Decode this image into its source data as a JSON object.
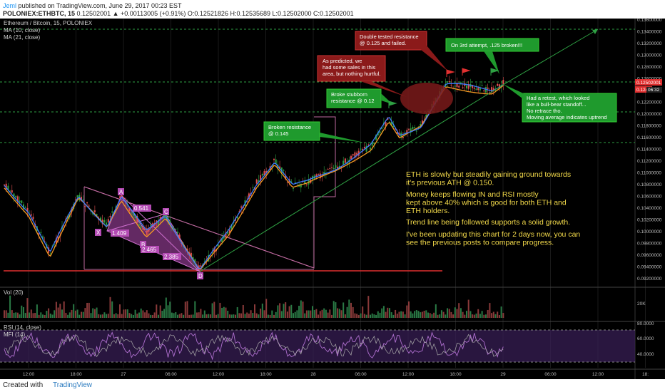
{
  "header": {
    "author": "Jeml",
    "published": "published on TradingView.com, June 29, 2017 00:23 EST",
    "symbol_line": "POLONIEX:ETHBTC, 15",
    "price_line": "0.12502001 ▲ +0.00113005 (+0.91%) O:0.12521826 H:0.12535689 L:0.12502000 C:0.12502001"
  },
  "legend": {
    "title": "Ethereum / Bitcoin, 15, POLONIEX",
    "ma10": "MA (10, close)",
    "ma21": "MA (21, close)",
    "vol": "Vol (20)",
    "rsi": "RSI (14, close)",
    "mfi": "MFI (14)"
  },
  "annotations": {
    "double_tested": "Double tested resistance\n@ 0.125 and failed.",
    "predicted": "As predicted, we\nhad some sales in this\narea, but nothing hurtful.",
    "third_attempt": "On 3rd attempt, .125 broken!!!",
    "broke_stubborn": "Broke stubborn\nresistance @ 0.12",
    "broken_145": "Broken resistance\n@ 0.145",
    "retest": "Had a retest, which looked\nlike a bull-bear standoff...\nNo retrace tho.\nMoving average indicates uptrend"
  },
  "notes": {
    "p1": "ETH is slowly but steadily gaining ground towards\nit's previous ATH @ 0.150.",
    "p2": "Money keeps flowing IN and RSI mostly\nkept above 40% which is good for both ETH and\nETH holders.",
    "p3": "Trend line being followed supports a solid growth.",
    "p4": "I've been updating this chart for 2 days now, you can\nsee the previous posts to compare progress."
  },
  "pattern": {
    "points": [
      "X",
      "A",
      "B",
      "C",
      "D"
    ],
    "ratios": [
      "0.541",
      "1.409",
      "2.465",
      "2.385"
    ]
  },
  "price_axis": {
    "labels": [
      "0.13600000",
      "0.13400000",
      "0.13200000",
      "0.13000000",
      "0.12800000",
      "0.12600000",
      "0.12400000",
      "0.12200000",
      "0.12000000",
      "0.11800000",
      "0.11600000",
      "0.11400000",
      "0.11200000",
      "0.11000000",
      "0.10800000",
      "0.10600000",
      "0.10400000",
      "0.10200000",
      "0.10000000",
      "0.09800000",
      "0.09600000",
      "0.09400000",
      "0.09200000"
    ],
    "current_price": "0.12502001",
    "countdown": "06:32",
    "partial": "0.124"
  },
  "vol_axis": {
    "label": "20K"
  },
  "osc_axis": {
    "labels": [
      "80.0000",
      "60.0000",
      "40.0000"
    ]
  },
  "time_axis": {
    "labels": [
      "12:00",
      "18:00",
      "27",
      "06:00",
      "12:00",
      "18:00",
      "28",
      "06:00",
      "12:00",
      "18:00",
      "29",
      "06:00",
      "12:00",
      "18:"
    ]
  },
  "colors": {
    "bull": "#2ea043",
    "bear": "#e05050",
    "ma10": "#3d7bff",
    "ma21": "#f59a23",
    "annotation_red": "#8b1a1a",
    "annotation_green": "#1f9a2d",
    "note_text": "#f2d94a",
    "pattern_fill": "#b44bb4"
  },
  "footer": {
    "created": "Created with",
    "brand": "TradingView"
  }
}
